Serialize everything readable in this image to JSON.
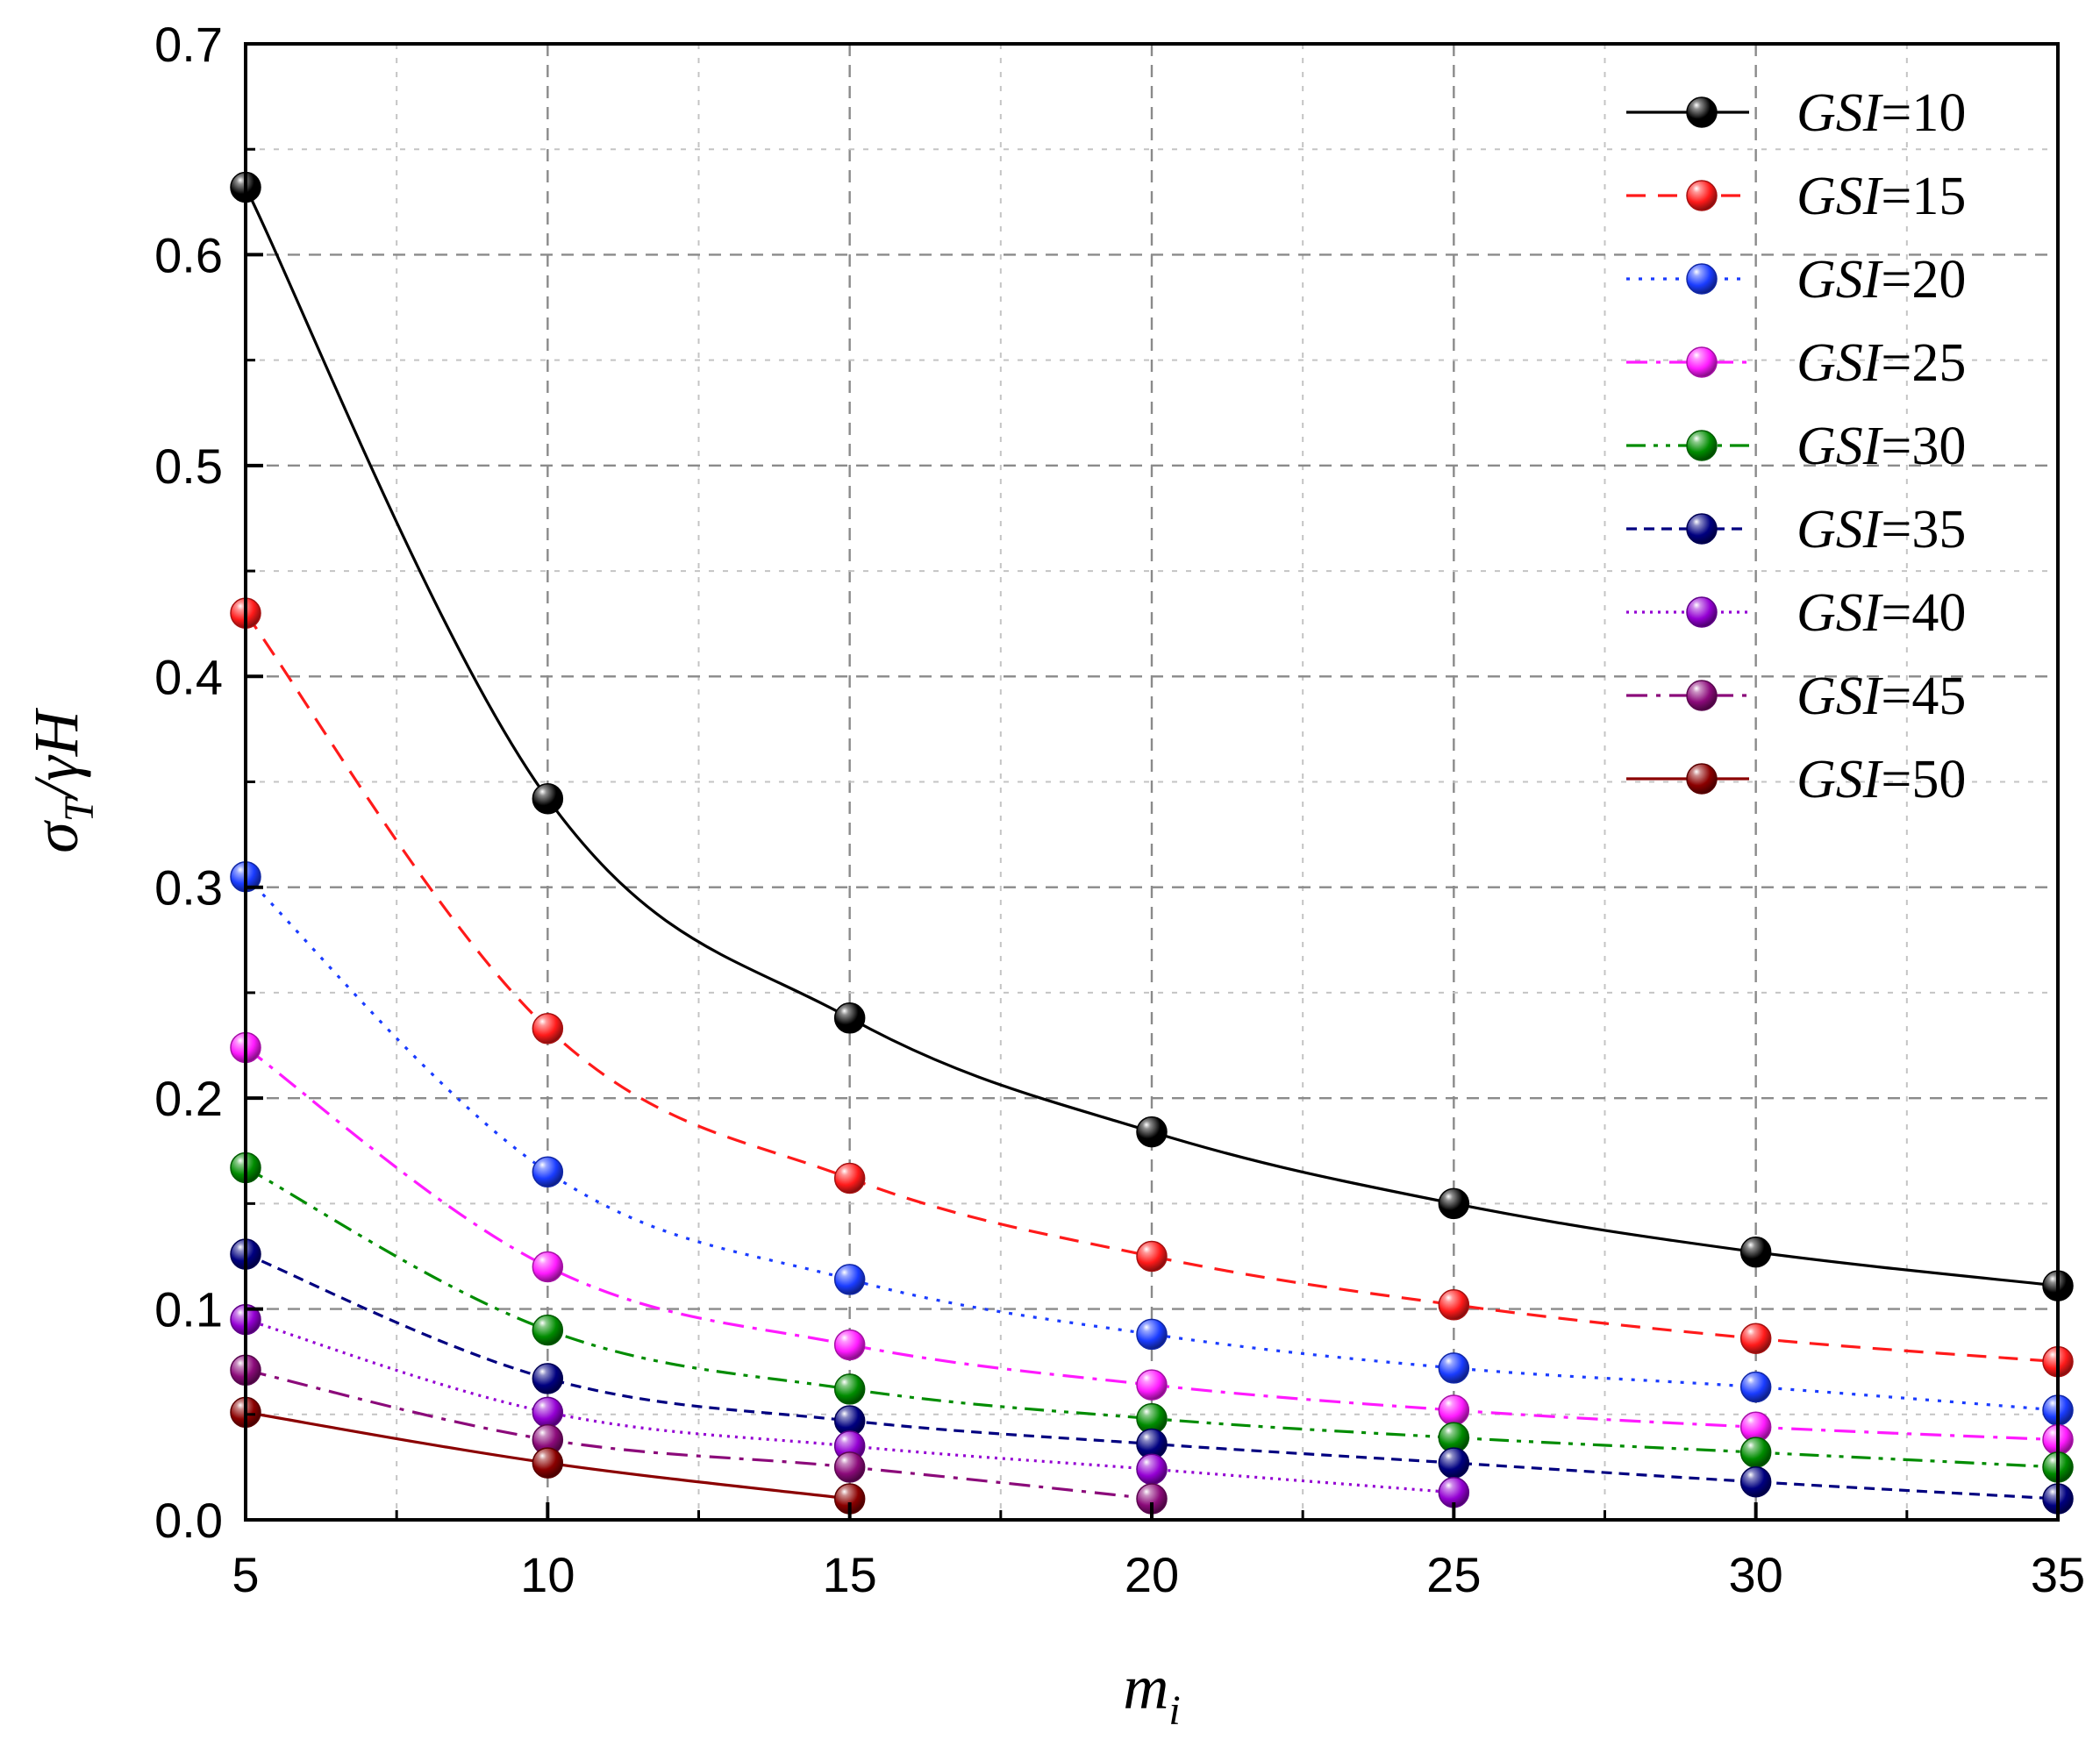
{
  "chart_data": {
    "type": "line",
    "title": "",
    "xlabel": "m_i",
    "ylabel": "σ_T/γH",
    "x_axis": {
      "label_main": "m",
      "label_sub": "i",
      "xlim": [
        5,
        35
      ],
      "ticks": [
        5,
        10,
        15,
        20,
        25,
        30,
        35
      ],
      "tick_labels": [
        "5",
        "10",
        "15",
        "20",
        "25",
        "30",
        "35"
      ]
    },
    "y_axis": {
      "label_sigma": "σ",
      "label_sub": "T",
      "label_rest": "/γH",
      "ylim": [
        0.0,
        0.7
      ],
      "ticks": [
        0.0,
        0.1,
        0.2,
        0.3,
        0.4,
        0.5,
        0.6,
        0.7
      ],
      "tick_labels": [
        "0.0",
        "0.1",
        "0.2",
        "0.3",
        "0.4",
        "0.5",
        "0.6",
        "0.7"
      ]
    },
    "grid": true,
    "legend_position": "top-right",
    "x": [
      5,
      10,
      15,
      20,
      25,
      30,
      35
    ],
    "series": [
      {
        "name_prefix": "GSI",
        "name_value": "=10",
        "color": "#000000",
        "dash": "solid",
        "x": [
          5,
          10,
          15,
          20,
          25,
          30,
          35
        ],
        "values": [
          0.632,
          0.342,
          0.238,
          0.184,
          0.15,
          0.127,
          0.111
        ]
      },
      {
        "name_prefix": "GSI",
        "name_value": "=15",
        "color": "#ff1a1a",
        "dash": "dash",
        "x": [
          5,
          10,
          15,
          20,
          25,
          30,
          35
        ],
        "values": [
          0.43,
          0.233,
          0.162,
          0.125,
          0.102,
          0.086,
          0.075
        ]
      },
      {
        "name_prefix": "GSI",
        "name_value": "=20",
        "color": "#1a3cff",
        "dash": "dot",
        "x": [
          5,
          10,
          15,
          20,
          25,
          30,
          35
        ],
        "values": [
          0.305,
          0.165,
          0.114,
          0.088,
          0.072,
          0.063,
          0.052
        ]
      },
      {
        "name_prefix": "GSI",
        "name_value": "=25",
        "color": "#ff1aff",
        "dash": "dashdot",
        "x": [
          5,
          10,
          15,
          20,
          25,
          30,
          35
        ],
        "values": [
          0.224,
          0.12,
          0.083,
          0.064,
          0.052,
          0.044,
          0.038
        ]
      },
      {
        "name_prefix": "GSI",
        "name_value": "=30",
        "color": "#008c00",
        "dash": "dashdotdot",
        "x": [
          5,
          10,
          15,
          20,
          25,
          30,
          35
        ],
        "values": [
          0.167,
          0.09,
          0.062,
          0.048,
          0.039,
          0.032,
          0.025
        ]
      },
      {
        "name_prefix": "GSI",
        "name_value": "=35",
        "color": "#000080",
        "dash": "shortdash",
        "x": [
          5,
          10,
          15,
          20,
          25,
          30,
          35
        ],
        "values": [
          0.126,
          0.067,
          0.047,
          0.036,
          0.027,
          0.018,
          0.01
        ]
      },
      {
        "name_prefix": "GSI",
        "name_value": "=40",
        "color": "#9400d3",
        "dash": "shortdot",
        "x": [
          5,
          10,
          15,
          20,
          25
        ],
        "values": [
          0.095,
          0.051,
          0.035,
          0.024,
          0.013
        ]
      },
      {
        "name_prefix": "GSI",
        "name_value": "=45",
        "color": "#8b0a7a",
        "dash": "dashdot",
        "x": [
          5,
          10,
          15,
          20
        ],
        "values": [
          0.071,
          0.038,
          0.025,
          0.01
        ]
      },
      {
        "name_prefix": "GSI",
        "name_value": "=50",
        "color": "#8b0000",
        "dash": "solid",
        "x": [
          5,
          10,
          15
        ],
        "values": [
          0.051,
          0.027,
          0.01
        ]
      }
    ]
  }
}
